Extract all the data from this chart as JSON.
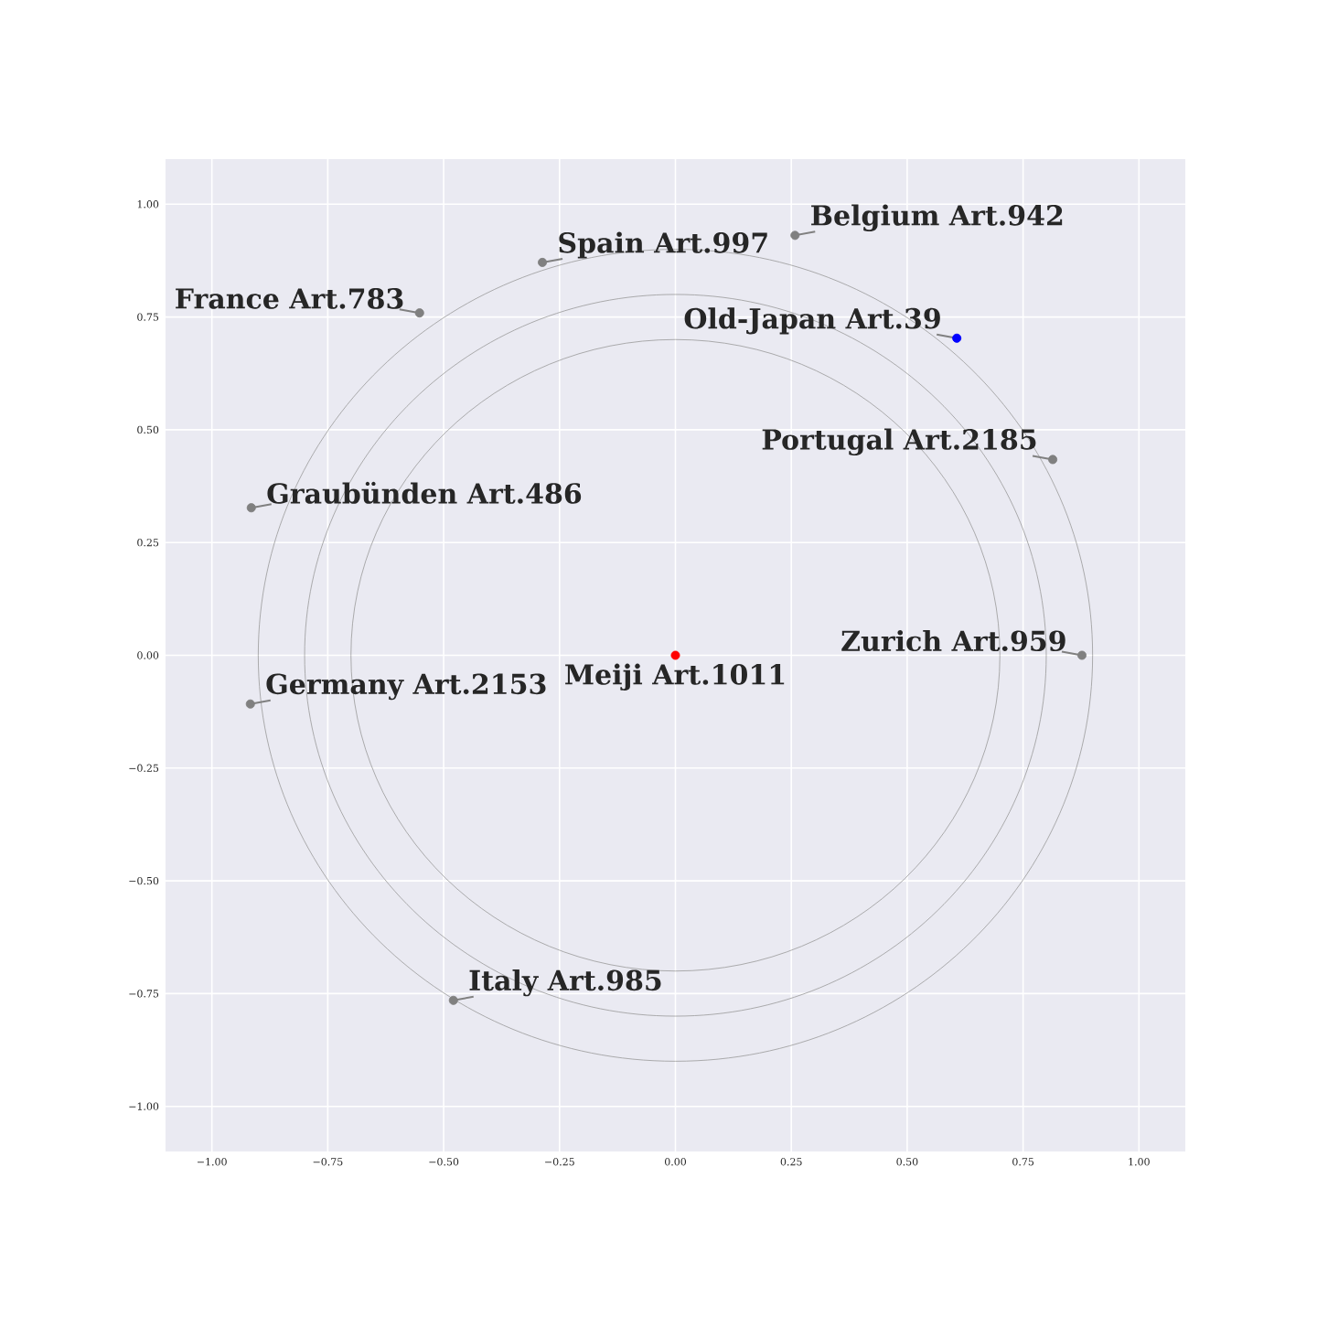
{
  "chart_data": {
    "type": "scatter",
    "xlim": [
      -1.1,
      1.1
    ],
    "ylim": [
      -1.1,
      1.1
    ],
    "xticks": [
      {
        "value": -1,
        "label": "−1.00"
      },
      {
        "value": -0.75,
        "label": "−0.75"
      },
      {
        "value": -0.5,
        "label": "−0.50"
      },
      {
        "value": -0.25,
        "label": "−0.25"
      },
      {
        "value": 0,
        "label": "0.00"
      },
      {
        "value": 0.25,
        "label": "0.25"
      },
      {
        "value": 0.5,
        "label": "0.50"
      },
      {
        "value": 0.75,
        "label": "0.75"
      },
      {
        "value": 1,
        "label": "1.00"
      }
    ],
    "yticks": [
      {
        "value": -1,
        "label": "−1.00"
      },
      {
        "value": -0.75,
        "label": "−0.75"
      },
      {
        "value": -0.5,
        "label": "−0.50"
      },
      {
        "value": -0.25,
        "label": "−0.25"
      },
      {
        "value": 0,
        "label": "0.00"
      },
      {
        "value": 0.25,
        "label": "0.25"
      },
      {
        "value": 0.5,
        "label": "0.50"
      },
      {
        "value": 0.75,
        "label": "0.75"
      },
      {
        "value": 1,
        "label": "1.00"
      }
    ],
    "grid": true,
    "series": [
      {
        "x": [
          0,
          0.607,
          0.258,
          -0.287,
          -0.552,
          0.814,
          -0.915,
          0.877,
          -0.917,
          -0.479
        ],
        "values": [
          0,
          0.703,
          0.931,
          0.871,
          0.759,
          0.434,
          0.327,
          0,
          -0.108,
          -0.765
        ],
        "colors": [
          "#ff0000",
          "#0000ff",
          "#808080",
          "#808080",
          "#808080",
          "#808080",
          "#808080",
          "#808080",
          "#808080",
          "#808080"
        ]
      }
    ],
    "annotations": [
      {
        "text": "Meiji Art.1011",
        "x": 0,
        "y": 0
      },
      {
        "text": "Old-Japan Art.39",
        "x": 0.607,
        "y": 0.703
      },
      {
        "text": "Belgium Art.942",
        "x": 0.258,
        "y": 0.931
      },
      {
        "text": "Spain Art.997",
        "x": -0.287,
        "y": 0.871
      },
      {
        "text": "France Art.783",
        "x": -0.552,
        "y": 0.759
      },
      {
        "text": "Portugal Art.2185",
        "x": 0.814,
        "y": 0.434
      },
      {
        "text": "Graubünden Art.486",
        "x": -0.915,
        "y": 0.327
      },
      {
        "text": "Zurich Art.959",
        "x": 0.877,
        "y": 0
      },
      {
        "text": "Germany Art.2153",
        "x": -0.917,
        "y": -0.108
      },
      {
        "text": "Italy Art.985",
        "x": -0.479,
        "y": -0.765
      }
    ]
  }
}
